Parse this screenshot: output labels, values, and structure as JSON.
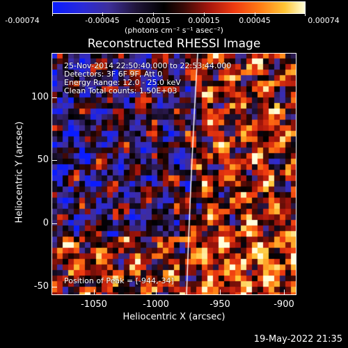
{
  "colorbar": {
    "ticks": [
      "-0.00074",
      "-0.00045",
      "-0.00015",
      "0.00015",
      "0.00045",
      "0.00074"
    ],
    "units": "(photons cm⁻² s⁻¹ asec⁻²)"
  },
  "title": "Reconstructed RHESSI Image",
  "info": {
    "time": "25-Nov-2014 22:50:40.000 to 22:53:44.000",
    "detectors": "Detectors: 3F 6F 9F, Att 0",
    "energy": "Energy Range: 12.0 - 25.0 keV",
    "clean": "Clean     Total counts: 1.50E+03",
    "peak": "Position of Peak = [-944,-34]"
  },
  "axes": {
    "xlabel": "Heliocentric X (arcsec)",
    "ylabel": "Heliocentric Y (arcsec)",
    "xticks": [
      "-1050",
      "-1000",
      "-950",
      "-900"
    ],
    "yticks": [
      "100",
      "50",
      "0",
      "-50"
    ]
  },
  "footer": "19-May-2022 21:35",
  "colors": {
    "background": "#000000",
    "limb_line": "#ffffff"
  }
}
